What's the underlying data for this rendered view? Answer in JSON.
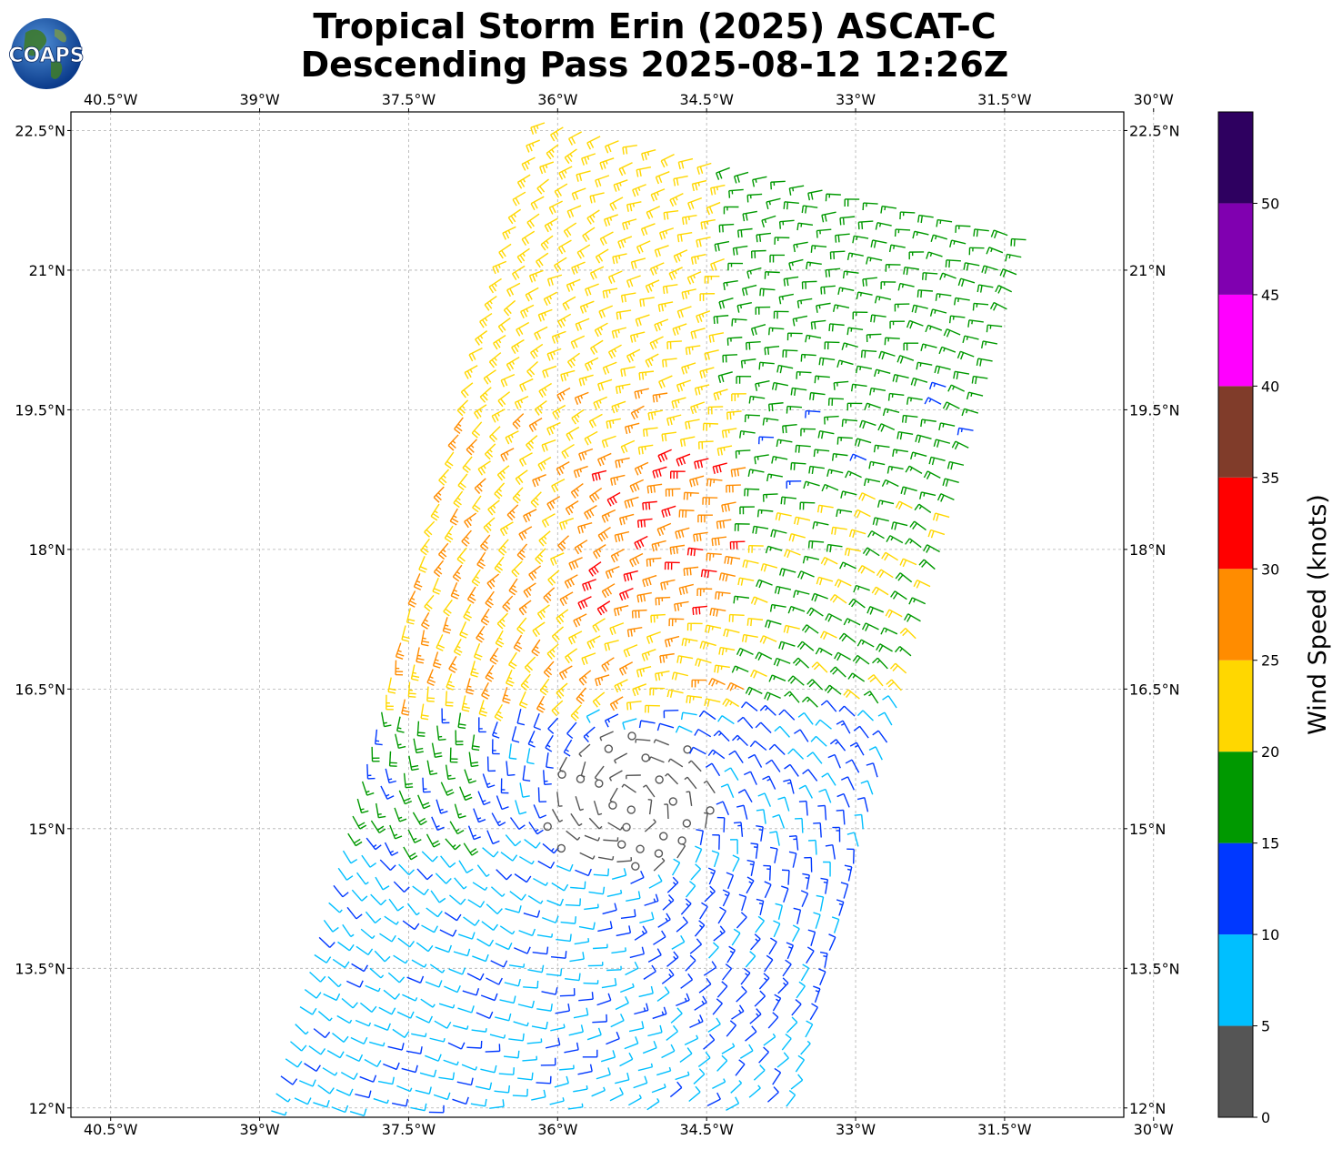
{
  "header": {
    "title_line1": "Tropical Storm Erin (2025) ASCAT-C",
    "title_line2": "Descending Pass 2025-08-12 12:26Z",
    "logo_text": "COAPS"
  },
  "map": {
    "lon_range": [
      -40.9,
      -30.3
    ],
    "lat_range": [
      11.9,
      22.7
    ],
    "lon_ticks": [
      {
        "value": -40.5,
        "label": "40.5°W"
      },
      {
        "value": -39.0,
        "label": "39°W"
      },
      {
        "value": -37.5,
        "label": "37.5°W"
      },
      {
        "value": -36.0,
        "label": "36°W"
      },
      {
        "value": -34.5,
        "label": "34.5°W"
      },
      {
        "value": -33.0,
        "label": "33°W"
      },
      {
        "value": -31.5,
        "label": "31.5°W"
      },
      {
        "value": -30.0,
        "label": "30°W"
      }
    ],
    "lat_ticks": [
      {
        "value": 22.5,
        "label": "22.5°N"
      },
      {
        "value": 21.0,
        "label": "21°N"
      },
      {
        "value": 19.5,
        "label": "19.5°N"
      },
      {
        "value": 18.0,
        "label": "18°N"
      },
      {
        "value": 16.5,
        "label": "16.5°N"
      },
      {
        "value": 15.0,
        "label": "15°N"
      },
      {
        "value": 13.5,
        "label": "13.5°N"
      },
      {
        "value": 12.0,
        "label": "12°N"
      }
    ],
    "gridlines": true,
    "center": {
      "lon": -35.3,
      "lat": 15.3
    },
    "swath": {
      "south_west": [
        -39.0,
        11.9
      ],
      "north_west": [
        -36.2,
        22.7
      ],
      "width_deg": 5.2
    }
  },
  "colorbar": {
    "label": "Wind Speed (knots)",
    "ticks": [
      "0",
      "5",
      "10",
      "15",
      "20",
      "25",
      "30",
      "35",
      "40",
      "45",
      "50"
    ],
    "bins": [
      {
        "from": 0,
        "to": 5,
        "color": "#555555"
      },
      {
        "from": 5,
        "to": 10,
        "color": "#00bfff"
      },
      {
        "from": 10,
        "to": 15,
        "color": "#0038ff"
      },
      {
        "from": 15,
        "to": 20,
        "color": "#009900"
      },
      {
        "from": 20,
        "to": 25,
        "color": "#ffd700"
      },
      {
        "from": 25,
        "to": 30,
        "color": "#ff8c00"
      },
      {
        "from": 30,
        "to": 35,
        "color": "#ff0000"
      },
      {
        "from": 35,
        "to": 40,
        "color": "#803c2a"
      },
      {
        "from": 40,
        "to": 45,
        "color": "#ff00ff"
      },
      {
        "from": 45,
        "to": 50,
        "color": "#8000b0"
      },
      {
        "from": 50,
        "to": 55,
        "color": "#2e0060"
      }
    ]
  },
  "colors": {
    "gridline": "#b0b0b0",
    "calm": "#555555",
    "light": "#00bfff",
    "moderate": "#0038ff",
    "fresh": "#009900",
    "strong": "#ffd700",
    "near_gale": "#ff8c00",
    "gale": "#ff0000"
  }
}
